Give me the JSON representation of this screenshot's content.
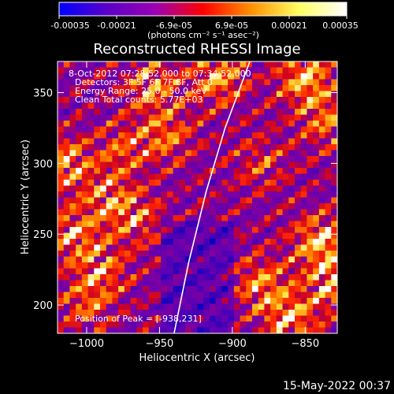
{
  "colorbar": {
    "tick_labels": [
      "-0.00035",
      "-0.00021",
      "-6.9e-05",
      "6.9e-05",
      "0.00021",
      "0.00035"
    ],
    "unit_label": "(photons cm⁻² s⁻¹ asec⁻²)",
    "colormap": [
      "#0000ff",
      "#5a00c8",
      "#9a00b4",
      "#ff0000",
      "#ff9000",
      "#ffff60",
      "#ffffff"
    ]
  },
  "title": "Reconstructed RHESSI Image",
  "info_lines": [
    "8-Oct-2012 07:28:52.000 to 07:34:52.000",
    "Detectors: 3F 5F 6F 7F 8F, Att 0",
    "Energy Range: 25.0 - 50.0 keV",
    "Clean     Total counts: 5.77E+03"
  ],
  "peak_label": "Position of Peak = [-938,231]",
  "timestamp": "15-May-2022 00:37",
  "chart_data": {
    "type": "heatmap",
    "title": "Reconstructed RHESSI Image",
    "xlabel": "Heliocentric X (arcsec)",
    "ylabel": "Heliocentric Y (arcsec)",
    "xlim": [
      -1020,
      -828
    ],
    "ylim": [
      180,
      372
    ],
    "x_ticks": [
      -1000,
      -950,
      -900,
      -850
    ],
    "y_ticks": [
      200,
      250,
      300,
      350
    ],
    "x_tick_labels": [
      "−1000",
      "−950",
      "−900",
      "−850"
    ],
    "y_tick_labels": [
      "200",
      "250",
      "300",
      "350"
    ],
    "value_range": [
      -0.00035,
      0.00035
    ],
    "limb_curve": [
      [
        -940,
        180
      ],
      [
        -930,
        230
      ],
      [
        -918,
        280
      ],
      [
        -905,
        325
      ],
      [
        -888,
        372
      ]
    ],
    "peak": [
      -938,
      231
    ]
  }
}
